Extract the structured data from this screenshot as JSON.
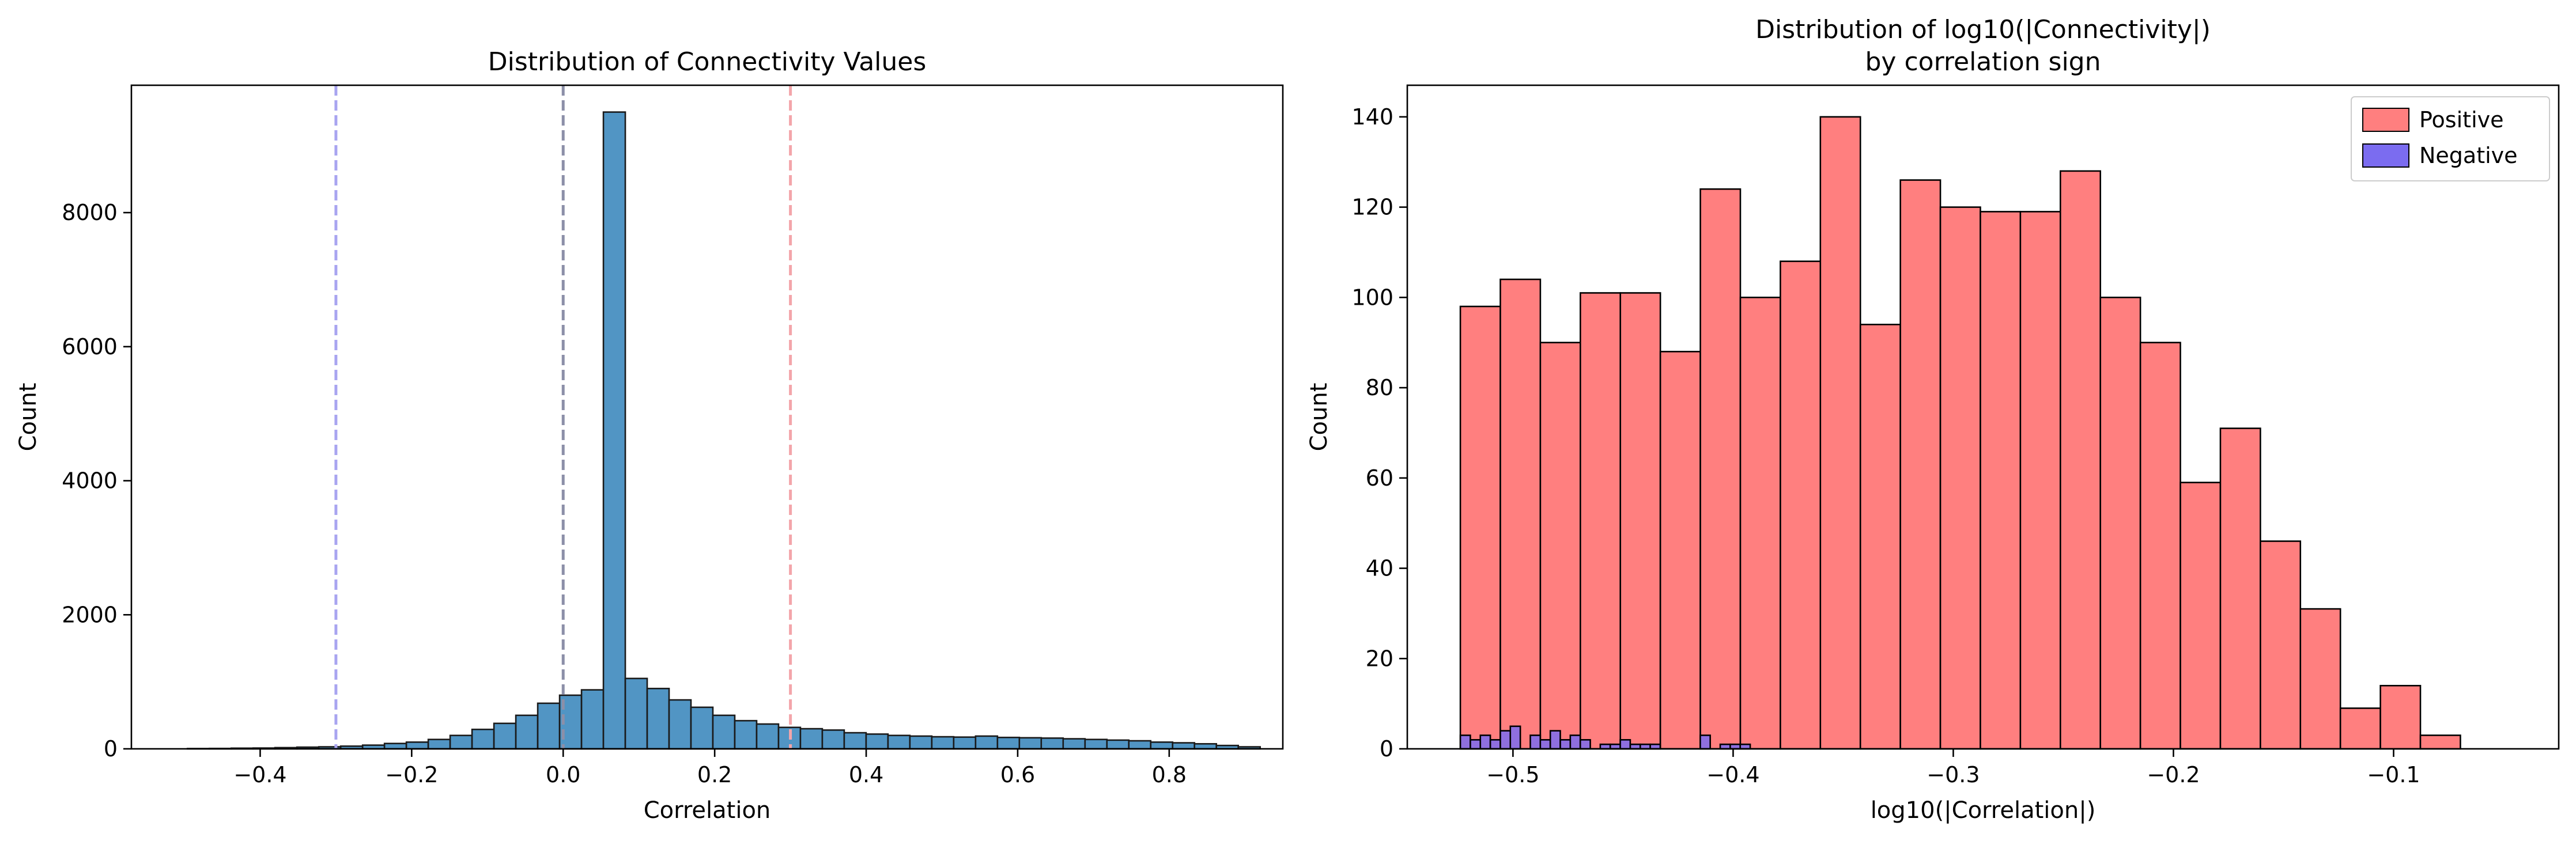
{
  "charts": [
    {
      "id": "left",
      "type": "bar",
      "title_lines": [
        "Distribution of Connectivity Values"
      ],
      "xlabel": "Correlation",
      "ylabel": "Count",
      "xlim": [
        -0.57,
        0.95
      ],
      "ylim": [
        0,
        9900
      ],
      "xticks": [
        -0.4,
        -0.2,
        0.0,
        0.2,
        0.4,
        0.6,
        0.8
      ],
      "xtick_labels": [
        "−0.4",
        "−0.2",
        "0.0",
        "0.2",
        "0.4",
        "0.6",
        "0.8"
      ],
      "yticks": [
        0,
        2000,
        4000,
        6000,
        8000
      ],
      "ytick_labels": [
        "0",
        "2000",
        "4000",
        "6000",
        "8000"
      ],
      "bar_color": "#5195c4",
      "edge_color": "#1a1a1a",
      "vlines": [
        {
          "x": -0.3,
          "color": "#a9a5f0"
        },
        {
          "x": 0.0,
          "color": "#8c8fa8"
        },
        {
          "x": 0.3,
          "color": "#f3a5aa"
        }
      ]
    },
    {
      "id": "right",
      "type": "bar",
      "title_lines": [
        "Distribution of log10(|Connectivity|)",
        "by correlation sign"
      ],
      "xlabel": "log10(|Correlation|)",
      "ylabel": "Count",
      "xlim": [
        -0.548,
        -0.025
      ],
      "ylim": [
        0,
        147
      ],
      "xticks": [
        -0.5,
        -0.4,
        -0.3,
        -0.2,
        -0.1
      ],
      "xtick_labels": [
        "−0.5",
        "−0.4",
        "−0.3",
        "−0.2",
        "−0.1"
      ],
      "yticks": [
        0,
        20,
        40,
        60,
        80,
        100,
        120,
        140
      ],
      "ytick_labels": [
        "0",
        "20",
        "40",
        "60",
        "80",
        "100",
        "120",
        "140"
      ],
      "legend": {
        "placement": "top-right",
        "entries": [
          {
            "label": "Positive",
            "color": "#ff7f7f"
          },
          {
            "label": "Negative",
            "color": "#7b6cf0"
          }
        ]
      }
    }
  ],
  "chart_data": [
    {
      "type": "bar",
      "title": "Distribution of Connectivity Values",
      "xlabel": "Correlation",
      "ylabel": "Count",
      "xlim": [
        -0.57,
        0.95
      ],
      "ylim": [
        0,
        9900
      ],
      "bin_width": 0.0289,
      "bin_start": -0.496,
      "values": [
        4,
        6,
        10,
        12,
        18,
        25,
        30,
        40,
        55,
        80,
        100,
        140,
        200,
        290,
        380,
        500,
        680,
        800,
        880,
        9500,
        1050,
        900,
        730,
        620,
        500,
        420,
        370,
        320,
        300,
        280,
        240,
        220,
        200,
        190,
        180,
        175,
        190,
        170,
        165,
        160,
        150,
        140,
        130,
        120,
        100,
        90,
        75,
        50,
        30
      ],
      "reference_lines": [
        -0.3,
        0.0,
        0.3
      ],
      "grid": false
    },
    {
      "type": "bar",
      "title": "Distribution of log10(|Connectivity|) by correlation sign",
      "xlabel": "log10(|Correlation|)",
      "ylabel": "Count",
      "xlim": [
        -0.548,
        -0.025
      ],
      "ylim": [
        0,
        147
      ],
      "grid": false,
      "legend_placement": "top-right",
      "series": [
        {
          "name": "Positive",
          "bin_width": 0.01817,
          "bin_start": -0.5239,
          "values": [
            98,
            104,
            90,
            101,
            101,
            88,
            124,
            100,
            108,
            140,
            94,
            126,
            120,
            119,
            119,
            128,
            100,
            90,
            59,
            71,
            46,
            31,
            9,
            14,
            3
          ]
        },
        {
          "name": "Negative",
          "bin_width": 0.00454,
          "bin_start": -0.5239,
          "values": [
            3,
            2,
            3,
            2,
            4,
            5,
            0,
            3,
            2,
            4,
            2,
            3,
            2,
            0,
            1,
            1,
            2,
            1,
            1,
            1,
            0,
            0,
            0,
            0,
            3,
            0,
            1,
            1,
            1,
            0
          ]
        }
      ]
    }
  ]
}
